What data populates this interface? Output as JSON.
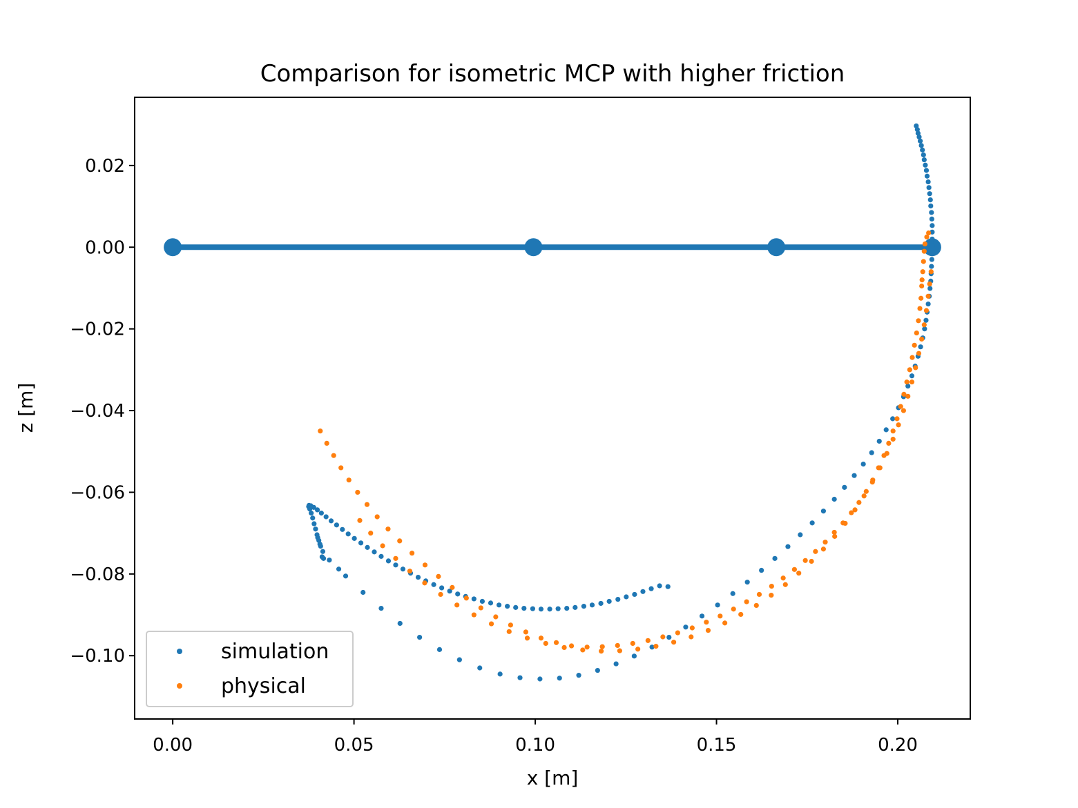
{
  "chart_data": {
    "type": "scatter",
    "title": "Comparison for isometric MCP with higher friction",
    "xlabel": "x [m]",
    "ylabel": "z [m]",
    "xlim": [
      -0.0105,
      0.22
    ],
    "ylim": [
      -0.1155,
      0.0367
    ],
    "x_ticks": [
      0.0,
      0.05,
      0.1,
      0.15,
      0.2
    ],
    "x_tick_labels": [
      "0.00",
      "0.05",
      "0.10",
      "0.15",
      "0.20"
    ],
    "y_ticks": [
      0.02,
      0.0,
      -0.02,
      -0.04,
      -0.06,
      -0.08,
      -0.1
    ],
    "y_tick_labels": [
      "0.02",
      "0.00",
      "−0.02",
      "−0.04",
      "−0.06",
      "−0.08",
      "−0.10"
    ],
    "grid": false,
    "legend_position": "lower-left",
    "colors": {
      "simulation": "#1f77b4",
      "physical": "#ff7f0e"
    },
    "finger_line": {
      "color": "#1f77b4",
      "points": [
        [
          0.0,
          0.0
        ],
        [
          0.0995,
          0.0
        ],
        [
          0.1665,
          0.0
        ],
        [
          0.2095,
          0.0
        ]
      ]
    },
    "series": [
      {
        "name": "simulation",
        "color": "#1f77b4",
        "points": [
          [
            0.2051,
            0.0297
          ],
          [
            0.2054,
            0.0288
          ],
          [
            0.2056,
            0.0279
          ],
          [
            0.2059,
            0.027
          ],
          [
            0.2062,
            0.026
          ],
          [
            0.2065,
            0.0249
          ],
          [
            0.2068,
            0.0238
          ],
          [
            0.2071,
            0.0226
          ],
          [
            0.2073,
            0.0214
          ],
          [
            0.2076,
            0.0201
          ],
          [
            0.2079,
            0.0188
          ],
          [
            0.2081,
            0.0174
          ],
          [
            0.2084,
            0.016
          ],
          [
            0.2086,
            0.0146
          ],
          [
            0.2088,
            0.0131
          ],
          [
            0.209,
            0.0116
          ],
          [
            0.2091,
            0.0101
          ],
          [
            0.2093,
            0.0085
          ],
          [
            0.2094,
            0.0069
          ],
          [
            0.2095,
            0.0053
          ],
          [
            0.2095,
            0.0037
          ],
          [
            0.2095,
            0.002
          ],
          [
            0.2095,
            0.0004
          ],
          [
            0.2095,
            -0.0013
          ],
          [
            0.2094,
            -0.003
          ],
          [
            0.2093,
            -0.0047
          ],
          [
            0.2092,
            -0.0065
          ],
          [
            0.2091,
            -0.0083
          ],
          [
            0.2089,
            -0.0101
          ],
          [
            0.2087,
            -0.012
          ],
          [
            0.2084,
            -0.0139
          ],
          [
            0.2081,
            -0.0159
          ],
          [
            0.2078,
            -0.0179
          ],
          [
            0.2074,
            -0.02
          ],
          [
            0.2069,
            -0.0222
          ],
          [
            0.2063,
            -0.0244
          ],
          [
            0.2056,
            -0.0267
          ],
          [
            0.2048,
            -0.0291
          ],
          [
            0.2039,
            -0.0315
          ],
          [
            0.2028,
            -0.034
          ],
          [
            0.2016,
            -0.0366
          ],
          [
            0.2002,
            -0.0393
          ],
          [
            0.1986,
            -0.042
          ],
          [
            0.1968,
            -0.0447
          ],
          [
            0.1949,
            -0.0475
          ],
          [
            0.1928,
            -0.0503
          ],
          [
            0.1905,
            -0.0531
          ],
          [
            0.188,
            -0.0559
          ],
          [
            0.1853,
            -0.0588
          ],
          [
            0.1825,
            -0.0617
          ],
          [
            0.1795,
            -0.0646
          ],
          [
            0.1764,
            -0.0675
          ],
          [
            0.1731,
            -0.0704
          ],
          [
            0.1697,
            -0.0733
          ],
          [
            0.1661,
            -0.0762
          ],
          [
            0.1624,
            -0.0791
          ],
          [
            0.1585,
            -0.082
          ],
          [
            0.1545,
            -0.0848
          ],
          [
            0.1503,
            -0.0876
          ],
          [
            0.146,
            -0.0903
          ],
          [
            0.1415,
            -0.093
          ],
          [
            0.1369,
            -0.0955
          ],
          [
            0.1322,
            -0.0979
          ],
          [
            0.1273,
            -0.1001
          ],
          [
            0.1223,
            -0.102
          ],
          [
            0.1172,
            -0.1036
          ],
          [
            0.112,
            -0.1048
          ],
          [
            0.1067,
            -0.1055
          ],
          [
            0.1013,
            -0.1057
          ],
          [
            0.0958,
            -0.1054
          ],
          [
            0.0903,
            -0.1045
          ],
          [
            0.0847,
            -0.103
          ],
          [
            0.0791,
            -0.101
          ],
          [
            0.0736,
            -0.0985
          ],
          [
            0.0681,
            -0.0955
          ],
          [
            0.0627,
            -0.0921
          ],
          [
            0.0575,
            -0.0884
          ],
          [
            0.0525,
            -0.0845
          ],
          [
            0.0477,
            -0.0805
          ],
          [
            0.0432,
            -0.0766
          ],
          [
            0.0414,
            -0.0745
          ],
          [
            0.0408,
            -0.0732
          ],
          [
            0.0403,
            -0.0718
          ],
          [
            0.0398,
            -0.0704
          ],
          [
            0.0394,
            -0.069
          ],
          [
            0.039,
            -0.0677
          ],
          [
            0.0386,
            -0.0663
          ],
          [
            0.0382,
            -0.0651
          ],
          [
            0.0378,
            -0.0641
          ],
          [
            0.0375,
            -0.0635
          ],
          [
            0.0376,
            -0.0632
          ],
          [
            0.0381,
            -0.0633
          ],
          [
            0.0389,
            -0.0637
          ],
          [
            0.0399,
            -0.0643
          ],
          [
            0.041,
            -0.0651
          ],
          [
            0.0423,
            -0.066
          ],
          [
            0.0437,
            -0.067
          ],
          [
            0.0452,
            -0.068
          ],
          [
            0.0468,
            -0.0691
          ],
          [
            0.0484,
            -0.0702
          ],
          [
            0.0501,
            -0.0713
          ],
          [
            0.0519,
            -0.0724
          ],
          [
            0.0537,
            -0.0735
          ],
          [
            0.0556,
            -0.0746
          ],
          [
            0.0575,
            -0.0757
          ],
          [
            0.0595,
            -0.0768
          ],
          [
            0.0615,
            -0.0778
          ],
          [
            0.0635,
            -0.0788
          ],
          [
            0.0656,
            -0.0798
          ],
          [
            0.0677,
            -0.0808
          ],
          [
            0.0698,
            -0.0817
          ],
          [
            0.072,
            -0.0826
          ],
          [
            0.0742,
            -0.0834
          ],
          [
            0.0764,
            -0.0842
          ],
          [
            0.0786,
            -0.0849
          ],
          [
            0.0808,
            -0.0855
          ],
          [
            0.0831,
            -0.0861
          ],
          [
            0.0854,
            -0.0867
          ],
          [
            0.0877,
            -0.0871
          ],
          [
            0.09,
            -0.0876
          ],
          [
            0.0923,
            -0.0879
          ],
          [
            0.0946,
            -0.0882
          ],
          [
            0.0969,
            -0.0884
          ],
          [
            0.0993,
            -0.0885
          ],
          [
            0.1016,
            -0.0886
          ],
          [
            0.104,
            -0.0886
          ],
          [
            0.1063,
            -0.0885
          ],
          [
            0.1087,
            -0.0884
          ],
          [
            0.111,
            -0.0882
          ],
          [
            0.1134,
            -0.0879
          ],
          [
            0.1157,
            -0.0876
          ],
          [
            0.1181,
            -0.0872
          ],
          [
            0.1204,
            -0.0867
          ],
          [
            0.1228,
            -0.0862
          ],
          [
            0.1251,
            -0.0856
          ],
          [
            0.1274,
            -0.085
          ],
          [
            0.1297,
            -0.0843
          ],
          [
            0.132,
            -0.0836
          ],
          [
            0.1343,
            -0.0829
          ],
          [
            0.1366,
            -0.0831
          ],
          [
            0.0458,
            -0.0788
          ],
          [
            0.0416,
            -0.0762
          ],
          [
            0.0412,
            -0.0758
          ],
          [
            0.0406,
            -0.0727
          ],
          [
            0.04,
            -0.0711
          ]
        ]
      },
      {
        "name": "physical",
        "color": "#ff7f0e",
        "points": [
          [
            0.2085,
            0.0035
          ],
          [
            0.208,
            0.0025
          ],
          [
            0.2075,
            0.0008
          ],
          [
            0.2073,
            -0.001
          ],
          [
            0.2071,
            -0.0035
          ],
          [
            0.2069,
            -0.006
          ],
          [
            0.2067,
            -0.008
          ],
          [
            0.2066,
            -0.0095
          ],
          [
            0.2064,
            -0.0125
          ],
          [
            0.2061,
            -0.015
          ],
          [
            0.2057,
            -0.018
          ],
          [
            0.2052,
            -0.021
          ],
          [
            0.2046,
            -0.024
          ],
          [
            0.204,
            -0.027
          ],
          [
            0.2033,
            -0.03
          ],
          [
            0.2025,
            -0.033
          ],
          [
            0.2017,
            -0.036
          ],
          [
            0.2008,
            -0.039
          ],
          [
            0.1998,
            -0.042
          ],
          [
            0.1987,
            -0.045
          ],
          [
            0.1975,
            -0.048
          ],
          [
            0.1962,
            -0.051
          ],
          [
            0.1947,
            -0.054
          ],
          [
            0.1931,
            -0.057
          ],
          [
            0.1913,
            -0.0598
          ],
          [
            0.1893,
            -0.0625
          ],
          [
            0.1872,
            -0.065
          ],
          [
            0.1849,
            -0.0675
          ],
          [
            0.1825,
            -0.0698
          ],
          [
            0.18,
            -0.0722
          ],
          [
            0.1773,
            -0.0745
          ],
          [
            0.1745,
            -0.0767
          ],
          [
            0.1715,
            -0.0789
          ],
          [
            0.1684,
            -0.081
          ],
          [
            0.1652,
            -0.083
          ],
          [
            0.1618,
            -0.085
          ],
          [
            0.1583,
            -0.0868
          ],
          [
            0.1547,
            -0.0886
          ],
          [
            0.151,
            -0.0903
          ],
          [
            0.1472,
            -0.0918
          ],
          [
            0.1433,
            -0.0932
          ],
          [
            0.1393,
            -0.0944
          ],
          [
            0.1352,
            -0.0954
          ],
          [
            0.1311,
            -0.0963
          ],
          [
            0.1269,
            -0.097
          ],
          [
            0.1227,
            -0.0975
          ],
          [
            0.1185,
            -0.0978
          ],
          [
            0.1143,
            -0.0979
          ],
          [
            0.11,
            -0.0976
          ],
          [
            0.1058,
            -0.0968
          ],
          [
            0.1016,
            -0.0957
          ],
          [
            0.0974,
            -0.0942
          ],
          [
            0.0932,
            -0.0925
          ],
          [
            0.0891,
            -0.0905
          ],
          [
            0.085,
            -0.0883
          ],
          [
            0.081,
            -0.0859
          ],
          [
            0.0771,
            -0.0833
          ],
          [
            0.0733,
            -0.0806
          ],
          [
            0.0696,
            -0.0778
          ],
          [
            0.066,
            -0.0749
          ],
          [
            0.0626,
            -0.0719
          ],
          [
            0.0594,
            -0.069
          ],
          [
            0.0564,
            -0.066
          ],
          [
            0.0536,
            -0.063
          ],
          [
            0.051,
            -0.06
          ],
          [
            0.0486,
            -0.057
          ],
          [
            0.0464,
            -0.054
          ],
          [
            0.0444,
            -0.051
          ],
          [
            0.0425,
            -0.048
          ],
          [
            0.0407,
            -0.045
          ],
          [
            0.2092,
            -0.006
          ],
          [
            0.2088,
            -0.009
          ],
          [
            0.2084,
            -0.012
          ],
          [
            0.2079,
            -0.0155
          ],
          [
            0.2073,
            -0.019
          ],
          [
            0.2066,
            -0.0225
          ],
          [
            0.2058,
            -0.026
          ],
          [
            0.2049,
            -0.0295
          ],
          [
            0.2039,
            -0.033
          ],
          [
            0.2028,
            -0.0365
          ],
          [
            0.2016,
            -0.04
          ],
          [
            0.2002,
            -0.0435
          ],
          [
            0.1987,
            -0.047
          ],
          [
            0.197,
            -0.0505
          ],
          [
            0.1951,
            -0.054
          ],
          [
            0.193,
            -0.0575
          ],
          [
            0.1907,
            -0.0609
          ],
          [
            0.1882,
            -0.0643
          ],
          [
            0.1855,
            -0.0676
          ],
          [
            0.1826,
            -0.0708
          ],
          [
            0.1795,
            -0.0739
          ],
          [
            0.1762,
            -0.0769
          ],
          [
            0.1727,
            -0.0798
          ],
          [
            0.169,
            -0.0826
          ],
          [
            0.1651,
            -0.0852
          ],
          [
            0.161,
            -0.0877
          ],
          [
            0.1567,
            -0.0899
          ],
          [
            0.1523,
            -0.092
          ],
          [
            0.1477,
            -0.0938
          ],
          [
            0.143,
            -0.0954
          ],
          [
            0.1382,
            -0.0967
          ],
          [
            0.1333,
            -0.0977
          ],
          [
            0.1283,
            -0.0984
          ],
          [
            0.1233,
            -0.0988
          ],
          [
            0.1182,
            -0.0989
          ],
          [
            0.1131,
            -0.0986
          ],
          [
            0.108,
            -0.098
          ],
          [
            0.1029,
            -0.097
          ],
          [
            0.0978,
            -0.0957
          ],
          [
            0.0928,
            -0.0941
          ],
          [
            0.0879,
            -0.0922
          ],
          [
            0.0831,
            -0.09
          ],
          [
            0.0784,
            -0.0876
          ],
          [
            0.0739,
            -0.085
          ],
          [
            0.0695,
            -0.0822
          ],
          [
            0.0654,
            -0.0793
          ],
          [
            0.0615,
            -0.0762
          ],
          [
            0.0579,
            -0.0731
          ],
          [
            0.0546,
            -0.07
          ],
          [
            0.0516,
            -0.0669
          ]
        ]
      }
    ]
  }
}
